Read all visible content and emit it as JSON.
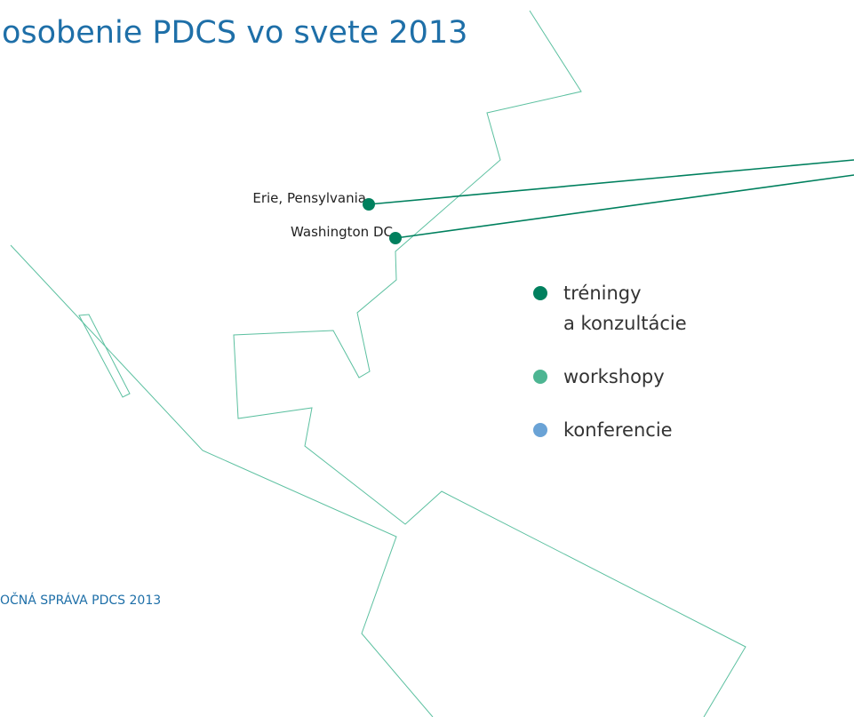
{
  "title": "osobenie PDCS vo svete 2013",
  "cities": [
    {
      "label": "Erie, Pensylvania"
    },
    {
      "label": "Washington DC"
    }
  ],
  "legend": [
    {
      "lines": [
        "tréningy",
        "a konzultácie"
      ],
      "color": "#00805e"
    },
    {
      "lines": [
        "workshopy"
      ],
      "color": "#4db592"
    },
    {
      "lines": [
        "konferencie"
      ],
      "color": "#6aa3d6"
    }
  ],
  "footer": "OČNÁ SPRÁVA PDCS 2013"
}
